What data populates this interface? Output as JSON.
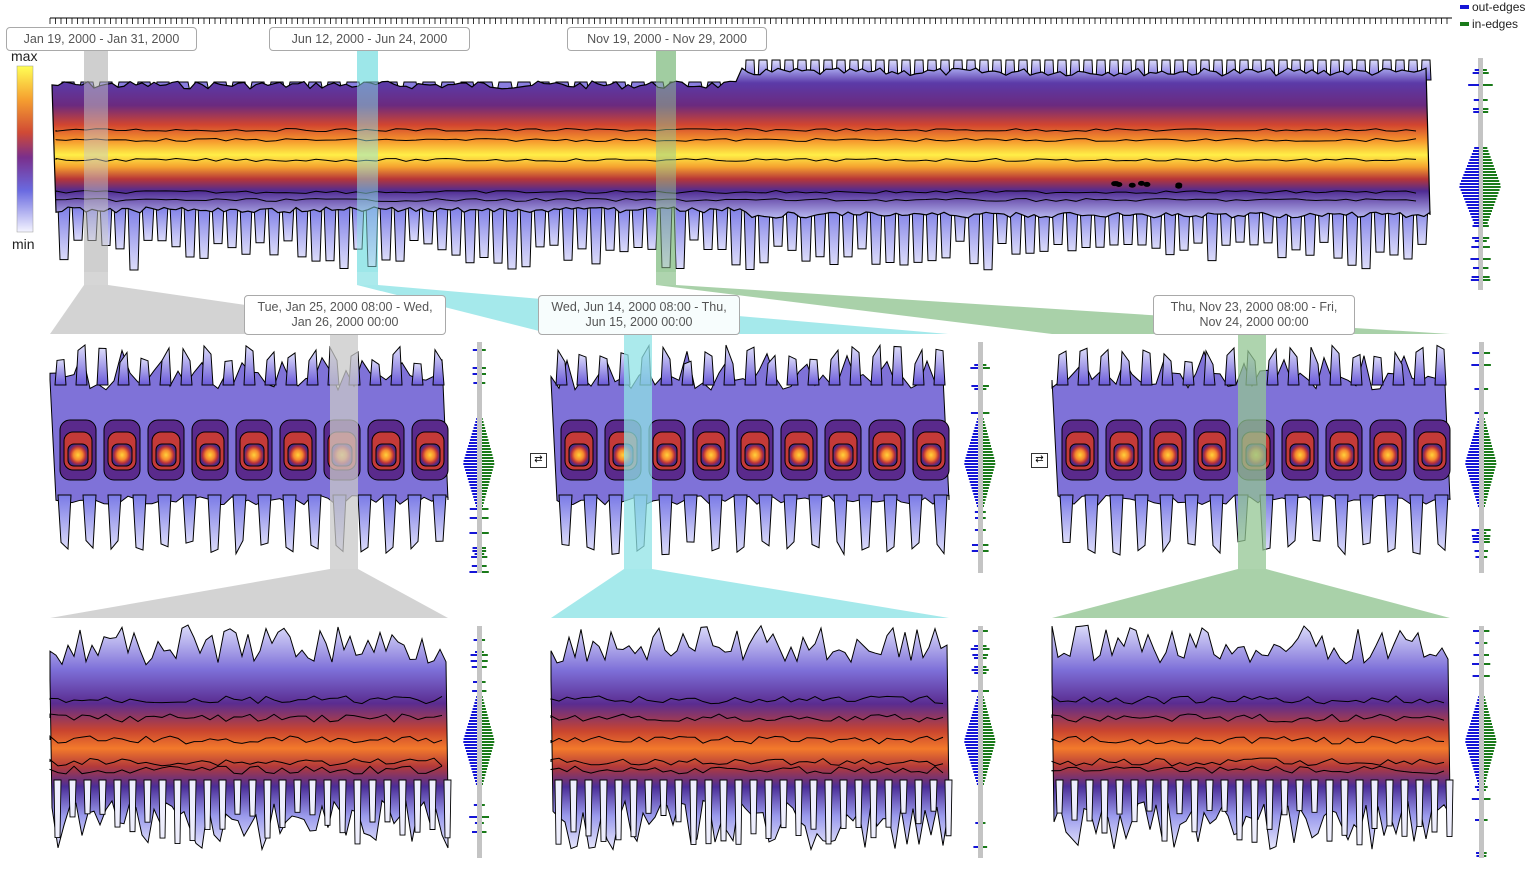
{
  "colorscale": {
    "max_label": "max",
    "min_label": "min"
  },
  "legend": [
    {
      "label": "out-edges",
      "color": "#1515d6"
    },
    {
      "label": "in-edges",
      "color": "#1a7a1a"
    }
  ],
  "overview": {
    "brushes": [
      {
        "label": "Jan 19, 2000 - Jan 31, 2000",
        "color": "#c8c8c8"
      },
      {
        "label": "Jun 12, 2000 - Jun 24, 2000",
        "color": "#8fe3e6"
      },
      {
        "label": "Nov 19, 2000 - Nov 29, 2000",
        "color": "#93c693"
      }
    ]
  },
  "detail": {
    "brushes": [
      {
        "line1": "Tue, Jan 25, 2000 08:00 - Wed,",
        "line2": "Jan 26, 2000 00:00",
        "color": "#c8c8c8"
      },
      {
        "line1": "Wed, Jun 14, 2000 08:00 - Thu,",
        "line2": "Jun 15, 2000 00:00",
        "color": "#8fe3e6"
      },
      {
        "line1": "Thu, Nov 23, 2000 08:00 - Fri,",
        "line2": "Nov 24, 2000 00:00",
        "color": "#93c693"
      }
    ]
  },
  "controls": {
    "swap_icon": "swap-arrows-icon",
    "swap_glyph": "⇄"
  },
  "colors": {
    "max": "#ffff33",
    "high": "#f07b2a",
    "mid": "#b8333a",
    "low": "#50249a",
    "min": "#f4f4ff",
    "outline": "#000000",
    "axis_bar": "#c4c4c4"
  }
}
